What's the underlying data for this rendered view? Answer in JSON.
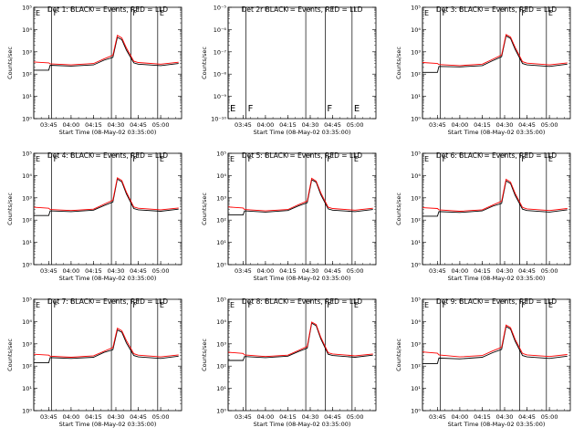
{
  "chart_data": [
    {
      "type": "line",
      "title": "Det 1: BLACK = Events, RED = LLD",
      "xlabel": "Start Time (08-May-02 03:35:00)",
      "ylabel": "Counts/sec",
      "yscale": "log",
      "ylim": [
        1,
        100000
      ],
      "yticks": [
        "10⁰",
        "10¹",
        "10²",
        "10³",
        "10⁴",
        "10⁵"
      ],
      "xlim": [
        "03:35",
        "05:14"
      ],
      "xticks": [
        "03:45",
        "04:00",
        "04:15",
        "04:30",
        "04:45",
        "05:00"
      ],
      "markers": [
        {
          "time": "03:35",
          "label": "E"
        },
        {
          "time": "03:47",
          "label": "F"
        },
        {
          "time": "04:27",
          "label": ""
        },
        {
          "time": "04:40",
          "label": "F"
        },
        {
          "time": "04:58",
          "label": "E"
        }
      ],
      "series": [
        {
          "name": "BLACK = Events",
          "color": "#000000",
          "x": [
            "03:35",
            "03:45",
            "03:46",
            "04:00",
            "04:15",
            "04:22",
            "04:28",
            "04:31",
            "04:34",
            "04:37",
            "04:42",
            "04:45",
            "05:00",
            "05:12"
          ],
          "values": [
            150,
            150,
            250,
            230,
            260,
            420,
            560,
            4500,
            3500,
            1200,
            320,
            280,
            240,
            300
          ]
        },
        {
          "name": "RED = LLD",
          "color": "#ff0000",
          "x": [
            "03:35",
            "03:45",
            "03:46",
            "04:00",
            "04:15",
            "04:22",
            "04:28",
            "04:31",
            "04:34",
            "04:37",
            "04:42",
            "04:45",
            "05:00",
            "05:12"
          ],
          "values": [
            350,
            320,
            290,
            260,
            300,
            480,
            700,
            5500,
            4200,
            1500,
            380,
            330,
            280,
            340
          ]
        }
      ]
    },
    {
      "type": "line",
      "title": "Det 2r BLACK = Events, RED = LLD",
      "xlabel": "Start Time (08-May-02 03:35:00)",
      "ylabel": "Counts/sec",
      "yscale": "log",
      "ylim": [
        1e-10,
        1e-05
      ],
      "yticks": [
        "10⁻¹⁰",
        "10⁻⁹",
        "10⁻⁸",
        "10⁻⁷",
        "10⁻⁶",
        "10⁻⁵"
      ],
      "xlim": [
        "03:35",
        "05:14"
      ],
      "xticks": [
        "03:45",
        "04:00",
        "04:15",
        "04:30",
        "04:45",
        "05:00"
      ],
      "markers": [
        {
          "time": "03:35",
          "label": "E"
        },
        {
          "time": "03:47",
          "label": "F"
        },
        {
          "time": "04:27",
          "label": ""
        },
        {
          "time": "04:40",
          "label": "F"
        },
        {
          "time": "04:58",
          "label": "E"
        }
      ],
      "series": []
    },
    {
      "type": "line",
      "title": "Det 3: BLACK = Events, RED = LLD",
      "xlabel": "Start Time (08-May-02 03:35:00)",
      "ylabel": "Counts/sec",
      "yscale": "log",
      "ylim": [
        1,
        100000
      ],
      "yticks": [
        "10⁰",
        "10¹",
        "10²",
        "10³",
        "10⁴",
        "10⁵"
      ],
      "xlim": [
        "03:35",
        "05:14"
      ],
      "xticks": [
        "03:45",
        "04:00",
        "04:15",
        "04:30",
        "04:45",
        "05:00"
      ],
      "markers": [
        {
          "time": "03:35",
          "label": "E"
        },
        {
          "time": "03:47",
          "label": "F"
        },
        {
          "time": "04:27",
          "label": ""
        },
        {
          "time": "04:40",
          "label": "F"
        },
        {
          "time": "04:58",
          "label": "E"
        }
      ],
      "series": [
        {
          "name": "BLACK = Events",
          "color": "#000000",
          "x": [
            "03:35",
            "03:45",
            "03:46",
            "04:00",
            "04:15",
            "04:22",
            "04:28",
            "04:31",
            "04:34",
            "04:37",
            "04:42",
            "04:45",
            "05:00",
            "05:12"
          ],
          "values": [
            120,
            120,
            220,
            210,
            240,
            400,
            600,
            5200,
            4000,
            1300,
            300,
            260,
            220,
            280
          ]
        },
        {
          "name": "RED = LLD",
          "color": "#ff0000",
          "x": [
            "03:35",
            "03:45",
            "03:46",
            "04:00",
            "04:15",
            "04:22",
            "04:28",
            "04:31",
            "04:34",
            "04:37",
            "04:42",
            "04:45",
            "05:00",
            "05:12"
          ],
          "values": [
            330,
            300,
            270,
            240,
            280,
            460,
            720,
            6000,
            4600,
            1600,
            360,
            310,
            260,
            320
          ]
        }
      ]
    },
    {
      "type": "line",
      "title": "Det 4: BLACK = Events, RED = LLD",
      "xlabel": "Start Time (08-May-02 03:35:00)",
      "ylabel": "Counts/sec",
      "yscale": "log",
      "ylim": [
        1,
        100000
      ],
      "yticks": [
        "10⁰",
        "10¹",
        "10²",
        "10³",
        "10⁴",
        "10⁵"
      ],
      "xlim": [
        "03:35",
        "05:14"
      ],
      "xticks": [
        "03:45",
        "04:00",
        "04:15",
        "04:30",
        "04:45",
        "05:00"
      ],
      "markers": [
        {
          "time": "03:35",
          "label": "E"
        },
        {
          "time": "03:47",
          "label": "F"
        },
        {
          "time": "04:27",
          "label": ""
        },
        {
          "time": "04:40",
          "label": "F"
        },
        {
          "time": "04:58",
          "label": "E"
        }
      ],
      "series": [
        {
          "name": "BLACK = Events",
          "color": "#000000",
          "x": [
            "03:35",
            "03:45",
            "03:46",
            "04:00",
            "04:15",
            "04:22",
            "04:28",
            "04:31",
            "04:34",
            "04:37",
            "04:42",
            "04:45",
            "05:00",
            "05:12"
          ],
          "values": [
            160,
            160,
            260,
            240,
            280,
            450,
            650,
            7000,
            5200,
            1500,
            330,
            290,
            250,
            310
          ]
        },
        {
          "name": "RED = LLD",
          "color": "#ff0000",
          "x": [
            "03:35",
            "03:45",
            "03:46",
            "04:00",
            "04:15",
            "04:22",
            "04:28",
            "04:31",
            "04:34",
            "04:37",
            "04:42",
            "04:45",
            "05:00",
            "05:12"
          ],
          "values": [
            380,
            340,
            300,
            270,
            310,
            510,
            780,
            8000,
            6000,
            1800,
            390,
            340,
            290,
            350
          ]
        }
      ]
    },
    {
      "type": "line",
      "title": "Det 5: BLACK = Events, RED = LLD",
      "xlabel": "Start Time (08-May-02 03:35:00)",
      "ylabel": "Counts/sec",
      "yscale": "log",
      "ylim": [
        1,
        100000
      ],
      "yticks": [
        "10⁰",
        "10¹",
        "10²",
        "10³",
        "10⁴",
        "10⁵"
      ],
      "xlim": [
        "03:35",
        "05:14"
      ],
      "xticks": [
        "03:45",
        "04:00",
        "04:15",
        "04:30",
        "04:45",
        "05:00"
      ],
      "markers": [
        {
          "time": "03:35",
          "label": "E"
        },
        {
          "time": "03:47",
          "label": "F"
        },
        {
          "time": "04:27",
          "label": ""
        },
        {
          "time": "04:40",
          "label": "F"
        },
        {
          "time": "04:58",
          "label": "E"
        }
      ],
      "series": [
        {
          "name": "BLACK = Events",
          "color": "#000000",
          "x": [
            "03:35",
            "03:45",
            "03:46",
            "04:00",
            "04:15",
            "04:22",
            "04:28",
            "04:31",
            "04:34",
            "04:37",
            "04:42",
            "04:45",
            "05:00",
            "05:12"
          ],
          "values": [
            170,
            170,
            260,
            230,
            270,
            430,
            600,
            6500,
            5000,
            1400,
            320,
            280,
            240,
            300
          ]
        },
        {
          "name": "RED = LLD",
          "color": "#ff0000",
          "x": [
            "03:35",
            "03:45",
            "03:46",
            "04:00",
            "04:15",
            "04:22",
            "04:28",
            "04:31",
            "04:34",
            "04:37",
            "04:42",
            "04:45",
            "05:00",
            "05:12"
          ],
          "values": [
            390,
            350,
            300,
            260,
            300,
            490,
            720,
            7500,
            5600,
            1700,
            380,
            330,
            280,
            340
          ]
        }
      ]
    },
    {
      "type": "line",
      "title": "Det 6: BLACK = Events, RED = LLD",
      "xlabel": "Start Time (08-May-02 03:35:00)",
      "ylabel": "Counts/sec",
      "yscale": "log",
      "ylim": [
        1,
        100000
      ],
      "yticks": [
        "10⁰",
        "10¹",
        "10²",
        "10³",
        "10⁴",
        "10⁵"
      ],
      "xlim": [
        "03:35",
        "05:14"
      ],
      "xticks": [
        "03:45",
        "04:00",
        "04:15",
        "04:30",
        "04:45",
        "05:00"
      ],
      "markers": [
        {
          "time": "03:35",
          "label": "E"
        },
        {
          "time": "03:47",
          "label": "F"
        },
        {
          "time": "04:27",
          "label": ""
        },
        {
          "time": "04:40",
          "label": "F"
        },
        {
          "time": "04:58",
          "label": "E"
        }
      ],
      "series": [
        {
          "name": "BLACK = Events",
          "color": "#000000",
          "x": [
            "03:35",
            "03:45",
            "03:46",
            "04:00",
            "04:15",
            "04:22",
            "04:28",
            "04:31",
            "04:34",
            "04:37",
            "04:42",
            "04:45",
            "05:00",
            "05:12"
          ],
          "values": [
            150,
            150,
            240,
            220,
            260,
            420,
            560,
            5800,
            4400,
            1300,
            310,
            270,
            230,
            290
          ]
        },
        {
          "name": "RED = LLD",
          "color": "#ff0000",
          "x": [
            "03:35",
            "03:45",
            "03:46",
            "04:00",
            "04:15",
            "04:22",
            "04:28",
            "04:31",
            "04:34",
            "04:37",
            "04:42",
            "04:45",
            "05:00",
            "05:12"
          ],
          "values": [
            360,
            330,
            290,
            250,
            290,
            470,
            700,
            6800,
            5100,
            1600,
            370,
            320,
            270,
            330
          ]
        }
      ]
    },
    {
      "type": "line",
      "title": "Det 7: BLACK = Events, RED = LLD",
      "xlabel": "Start Time (08-May-02 03:35:00)",
      "ylabel": "Counts/sec",
      "yscale": "log",
      "ylim": [
        1,
        100000
      ],
      "yticks": [
        "10⁰",
        "10¹",
        "10²",
        "10³",
        "10⁴",
        "10⁵"
      ],
      "xlim": [
        "03:35",
        "05:14"
      ],
      "xticks": [
        "03:45",
        "04:00",
        "04:15",
        "04:30",
        "04:45",
        "05:00"
      ],
      "markers": [
        {
          "time": "03:35",
          "label": "E"
        },
        {
          "time": "03:47",
          "label": "F"
        },
        {
          "time": "04:27",
          "label": ""
        },
        {
          "time": "04:40",
          "label": "F"
        },
        {
          "time": "04:58",
          "label": "E"
        }
      ],
      "series": [
        {
          "name": "BLACK = Events",
          "color": "#000000",
          "x": [
            "03:35",
            "03:45",
            "03:46",
            "04:00",
            "04:15",
            "04:22",
            "04:28",
            "04:31",
            "04:34",
            "04:37",
            "04:42",
            "04:45",
            "05:00",
            "05:12"
          ],
          "values": [
            140,
            140,
            240,
            220,
            250,
            410,
            540,
            4200,
            3300,
            1100,
            300,
            260,
            220,
            280
          ]
        },
        {
          "name": "RED = LLD",
          "color": "#ff0000",
          "x": [
            "03:35",
            "03:45",
            "03:46",
            "04:00",
            "04:15",
            "04:22",
            "04:28",
            "04:31",
            "04:34",
            "04:37",
            "04:42",
            "04:45",
            "05:00",
            "05:12"
          ],
          "values": [
            340,
            310,
            280,
            250,
            290,
            460,
            680,
            5000,
            3900,
            1400,
            360,
            310,
            260,
            320
          ]
        }
      ]
    },
    {
      "type": "line",
      "title": "Det 8: BLACK = Events, RED = LLD",
      "xlabel": "Start Time (08-May-02 03:35:00)",
      "ylabel": "Counts/sec",
      "yscale": "log",
      "ylim": [
        1,
        100000
      ],
      "yticks": [
        "10⁰",
        "10¹",
        "10²",
        "10³",
        "10⁴",
        "10⁵"
      ],
      "xlim": [
        "03:35",
        "05:14"
      ],
      "xticks": [
        "03:45",
        "04:00",
        "04:15",
        "04:30",
        "04:45",
        "05:00"
      ],
      "markers": [
        {
          "time": "03:35",
          "label": "E"
        },
        {
          "time": "03:47",
          "label": "F"
        },
        {
          "time": "04:27",
          "label": ""
        },
        {
          "time": "04:40",
          "label": "F"
        },
        {
          "time": "04:58",
          "label": "E"
        }
      ],
      "series": [
        {
          "name": "BLACK = Events",
          "color": "#000000",
          "x": [
            "03:35",
            "03:45",
            "03:46",
            "04:00",
            "04:15",
            "04:22",
            "04:28",
            "04:31",
            "04:34",
            "04:37",
            "04:42",
            "04:45",
            "05:00",
            "05:12"
          ],
          "values": [
            180,
            180,
            270,
            240,
            280,
            450,
            640,
            8500,
            6500,
            1700,
            340,
            300,
            250,
            310
          ]
        },
        {
          "name": "RED = LLD",
          "color": "#ff0000",
          "x": [
            "03:35",
            "03:45",
            "03:46",
            "04:00",
            "04:15",
            "04:22",
            "04:28",
            "04:31",
            "04:34",
            "04:37",
            "04:42",
            "04:45",
            "05:00",
            "05:12"
          ],
          "values": [
            420,
            370,
            320,
            270,
            310,
            500,
            760,
            9500,
            7300,
            2000,
            400,
            350,
            290,
            350
          ]
        }
      ]
    },
    {
      "type": "line",
      "title": "Det 9: BLACK = Events, RED = LLD",
      "xlabel": "Start Time (08-May-02 03:35:00)",
      "ylabel": "Counts/sec",
      "yscale": "log",
      "ylim": [
        1,
        100000
      ],
      "yticks": [
        "10⁰",
        "10¹",
        "10²",
        "10³",
        "10⁴",
        "10⁵"
      ],
      "xlim": [
        "03:35",
        "05:14"
      ],
      "xticks": [
        "03:45",
        "04:00",
        "04:15",
        "04:30",
        "04:45",
        "05:00"
      ],
      "markers": [
        {
          "time": "03:35",
          "label": "E"
        },
        {
          "time": "03:47",
          "label": "F"
        },
        {
          "time": "04:27",
          "label": ""
        },
        {
          "time": "04:40",
          "label": "F"
        },
        {
          "time": "04:58",
          "label": "E"
        }
      ],
      "series": [
        {
          "name": "BLACK = Events",
          "color": "#000000",
          "x": [
            "03:35",
            "03:45",
            "03:46",
            "04:00",
            "04:15",
            "04:22",
            "04:28",
            "04:31",
            "04:34",
            "04:37",
            "04:42",
            "04:45",
            "05:00",
            "05:12"
          ],
          "values": [
            130,
            130,
            230,
            210,
            250,
            400,
            560,
            6000,
            4600,
            1300,
            300,
            260,
            220,
            280
          ]
        },
        {
          "name": "RED = LLD",
          "color": "#ff0000",
          "x": [
            "03:35",
            "03:45",
            "03:46",
            "04:00",
            "04:15",
            "04:22",
            "04:28",
            "04:31",
            "04:34",
            "04:37",
            "04:42",
            "04:45",
            "05:00",
            "05:12"
          ],
          "values": [
            430,
            380,
            320,
            260,
            300,
            480,
            700,
            7000,
            5300,
            1600,
            370,
            320,
            270,
            330
          ]
        }
      ]
    }
  ]
}
